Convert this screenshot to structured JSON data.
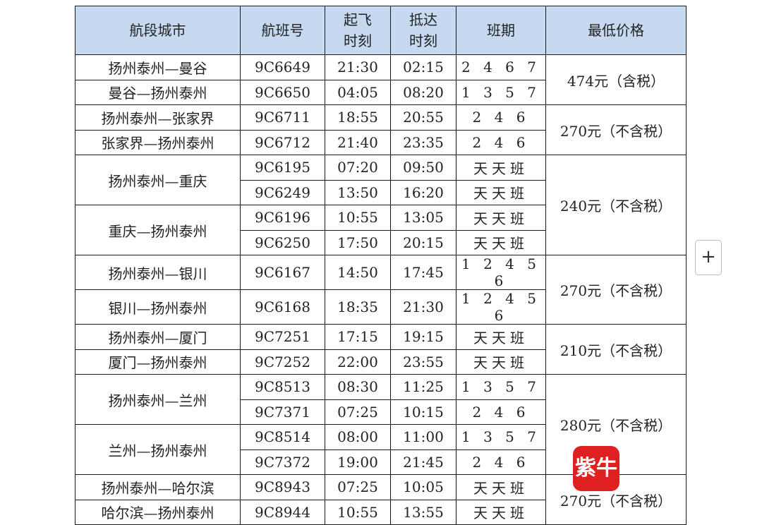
{
  "headers": [
    "航段城市",
    "航班号",
    "起飞\n时刻",
    "抵达\n时刻",
    "班期",
    "最低价格"
  ],
  "rows": [
    {
      "city": "扬州泰州—曼谷",
      "flight": "9C6649",
      "dep": "21:30",
      "arr": "02:15",
      "days": "2 4 6 7"
    },
    {
      "city": "曼谷—扬州泰州",
      "flight": "9C6650",
      "dep": "04:05",
      "arr": "08:20",
      "days": "1 3 5 7"
    },
    {
      "city": "扬州泰州—张家界",
      "flight": "9C6711",
      "dep": "18:55",
      "arr": "20:55",
      "days": "2 4 6"
    },
    {
      "city": "张家界—扬州泰州",
      "flight": "9C6712",
      "dep": "21:40",
      "arr": "23:35",
      "days": "2 4 6"
    },
    {
      "city": "扬州泰州—重庆",
      "flight": "9C6195",
      "dep": "07:20",
      "arr": "09:50",
      "days": "天天班"
    },
    {
      "city": null,
      "flight": "9C6249",
      "dep": "13:50",
      "arr": "16:20",
      "days": "天天班"
    },
    {
      "city": "重庆—扬州泰州",
      "flight": "9C6196",
      "dep": "10:55",
      "arr": "13:05",
      "days": "天天班"
    },
    {
      "city": null,
      "flight": "9C6250",
      "dep": "17:50",
      "arr": "20:15",
      "days": "天天班"
    },
    {
      "city": "扬州泰州—银川",
      "flight": "9C6167",
      "dep": "14:50",
      "arr": "17:45",
      "days": "1 2 4 5 6"
    },
    {
      "city": "银川—扬州泰州",
      "flight": "9C6168",
      "dep": "18:35",
      "arr": "21:30",
      "days": "1 2 4 5 6"
    },
    {
      "city": "扬州泰州—厦门",
      "flight": "9C7251",
      "dep": "17:15",
      "arr": "19:15",
      "days": "天天班"
    },
    {
      "city": "厦门—扬州泰州",
      "flight": "9C7252",
      "dep": "22:00",
      "arr": "23:55",
      "days": "天天班"
    },
    {
      "city": "扬州泰州—兰州",
      "flight": "9C8513",
      "dep": "08:30",
      "arr": "11:25",
      "days": "1 3 5 7"
    },
    {
      "city": null,
      "flight": "9C7371",
      "dep": "07:25",
      "arr": "10:15",
      "days": "2 4 6"
    },
    {
      "city": "兰州—扬州泰州",
      "flight": "9C8514",
      "dep": "08:00",
      "arr": "11:00",
      "days": "1 3 5 7"
    },
    {
      "city": null,
      "flight": "9C7372",
      "dep": "19:00",
      "arr": "21:45",
      "days": "2 4 6"
    },
    {
      "city": "扬州泰州—哈尔滨",
      "flight": "9C8943",
      "dep": "07:25",
      "arr": "10:05",
      "days": "天天班"
    },
    {
      "city": "哈尔滨—扬州泰州",
      "flight": "9C8944",
      "dep": "10:55",
      "arr": "13:55",
      "days": "天天班"
    }
  ],
  "city_spans": {
    "4": 2,
    "6": 2,
    "12": 2,
    "14": 2
  },
  "prices": [
    {
      "start": 0,
      "span": 2,
      "text": "474元（含税）"
    },
    {
      "start": 2,
      "span": 2,
      "text": "270元（不含税）"
    },
    {
      "start": 4,
      "span": 4,
      "text": "240元（不含税）"
    },
    {
      "start": 8,
      "span": 2,
      "text": "270元（不含税）"
    },
    {
      "start": 10,
      "span": 2,
      "text": "210元（不含税）"
    },
    {
      "start": 12,
      "span": 4,
      "text": "280元（不含税）"
    },
    {
      "start": 16,
      "span": 2,
      "text": "270元（不含税）"
    }
  ],
  "expand_button": "+",
  "watermark_logo": "紫牛",
  "colors": {
    "header_bg": "#c6d9f1",
    "logo_red": "#e02020"
  }
}
